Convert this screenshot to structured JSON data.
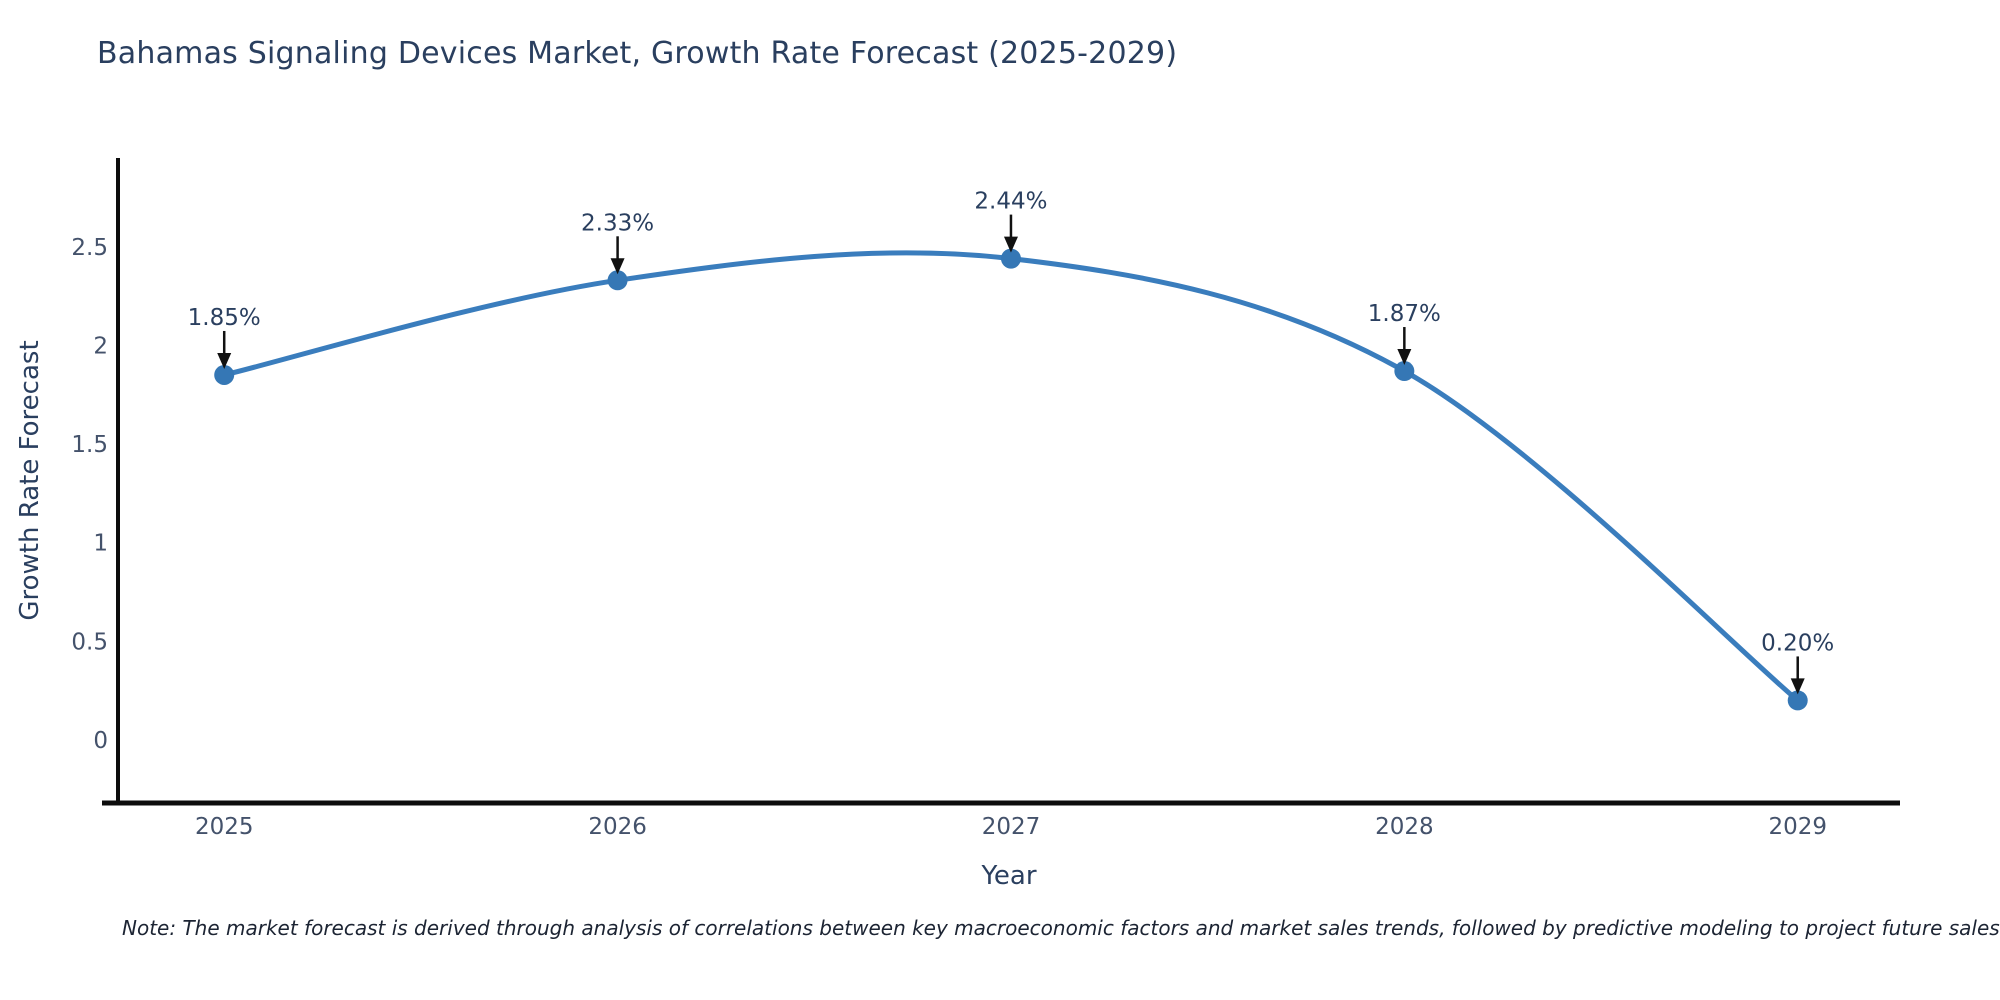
{
  "title": "Bahamas Signaling Devices Market, Growth Rate Forecast (2025-2029)",
  "note": "Note: The market forecast is derived through analysis of correlations between key macroeconomic factors and market sales trends, followed by predictive modeling to project future sales",
  "chart_data": {
    "type": "line",
    "line_shape": "spline",
    "title": "Bahamas Signaling Devices Market, Growth Rate Forecast (2025-2029)",
    "xlabel": "Year",
    "ylabel": "Growth Rate Forecast",
    "x": [
      2025,
      2026,
      2027,
      2028,
      2029
    ],
    "y": [
      1.85,
      2.33,
      2.44,
      1.87,
      0.2
    ],
    "point_labels": [
      "1.85%",
      "2.33%",
      "2.44%",
      "1.87%",
      "0.20%"
    ],
    "xticks": [
      2025,
      2026,
      2027,
      2028,
      2029
    ],
    "yticks": [
      0,
      0.5,
      1,
      1.5,
      2,
      2.5
    ],
    "xlim": [
      2024.73,
      2029.26
    ],
    "ylim": [
      -0.32,
      2.95
    ],
    "grid": false,
    "legend": false,
    "colors": {
      "line": "#3a7dbd",
      "marker": "#3577b5",
      "annotation_text": "#2a3f5f",
      "annotation_arrow": "#111111",
      "axis_spine": "#0d0d0d",
      "tick_label": "#44526b",
      "axis_title": "#2a3f5f"
    }
  }
}
